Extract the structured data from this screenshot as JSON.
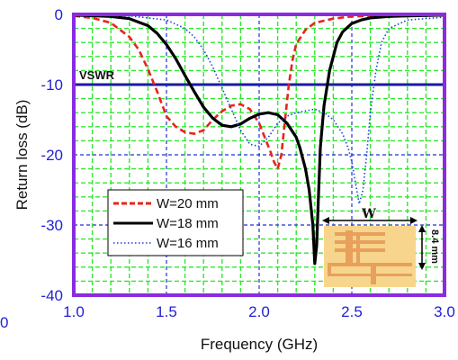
{
  "chart_data": {
    "type": "line",
    "xlabel": "Frequency (GHz)",
    "ylabel": "Return loss (dB)",
    "xlim": [
      1.0,
      3.0
    ],
    "ylim": [
      -40,
      0
    ],
    "x_ticks": [
      "1.0",
      "1.5",
      "2.0",
      "2.5",
      "3.0"
    ],
    "y_ticks": [
      "0",
      "-10",
      "-20",
      "-30",
      "-40"
    ],
    "stray_label": "0",
    "grid": true,
    "reference_line": {
      "label": "VSWR",
      "y": -10,
      "color": "#1a1aa6"
    },
    "legend_position": "bottom-left",
    "series": [
      {
        "name": "W=20 mm",
        "color": "#e8241c",
        "style": "dashed",
        "x": [
          1.0,
          1.1,
          1.2,
          1.3,
          1.35,
          1.4,
          1.45,
          1.5,
          1.55,
          1.6,
          1.65,
          1.7,
          1.75,
          1.8,
          1.85,
          1.9,
          1.95,
          2.0,
          2.03,
          2.06,
          2.08,
          2.1,
          2.12,
          2.14,
          2.16,
          2.18,
          2.2,
          2.25,
          2.3,
          2.4,
          2.5,
          2.6,
          2.8,
          3.0
        ],
        "y": [
          -0.2,
          -0.5,
          -1.2,
          -3.2,
          -5.0,
          -7.8,
          -11.0,
          -14.5,
          -16.0,
          -16.8,
          -17.0,
          -16.5,
          -15.0,
          -13.8,
          -13.0,
          -12.8,
          -13.5,
          -15.5,
          -17.5,
          -19.5,
          -21.0,
          -22.0,
          -20.0,
          -15.0,
          -10.0,
          -6.5,
          -4.2,
          -2.2,
          -1.2,
          -0.6,
          -0.3,
          -0.2,
          -0.1,
          -0.1
        ]
      },
      {
        "name": "W=18 mm",
        "color": "#000000",
        "style": "solid",
        "x": [
          1.0,
          1.2,
          1.3,
          1.4,
          1.45,
          1.5,
          1.55,
          1.6,
          1.65,
          1.7,
          1.75,
          1.8,
          1.85,
          1.9,
          1.95,
          2.0,
          2.05,
          2.1,
          2.15,
          2.2,
          2.22,
          2.25,
          2.27,
          2.29,
          2.3,
          2.31,
          2.32,
          2.33,
          2.35,
          2.38,
          2.42,
          2.45,
          2.5,
          2.55,
          2.6,
          2.7,
          2.8,
          3.0
        ],
        "y": [
          -0.1,
          -0.3,
          -0.6,
          -1.6,
          -2.7,
          -4.3,
          -6.3,
          -8.7,
          -11.0,
          -13.2,
          -14.8,
          -15.8,
          -16.0,
          -15.6,
          -14.8,
          -14.2,
          -14.0,
          -14.3,
          -15.5,
          -17.5,
          -19.0,
          -22.0,
          -25.0,
          -30.0,
          -35.5,
          -33.0,
          -26.0,
          -19.0,
          -13.0,
          -8.0,
          -4.0,
          -2.5,
          -1.3,
          -0.8,
          -0.5,
          -0.3,
          -0.2,
          -0.1
        ]
      },
      {
        "name": "W=16 mm",
        "color": "#1a3fe0",
        "style": "dotted",
        "x": [
          1.0,
          1.3,
          1.5,
          1.6,
          1.65,
          1.7,
          1.75,
          1.8,
          1.85,
          1.9,
          1.95,
          2.0,
          2.05,
          2.1,
          2.15,
          2.2,
          2.3,
          2.35,
          2.4,
          2.45,
          2.48,
          2.5,
          2.52,
          2.54,
          2.56,
          2.58,
          2.6,
          2.63,
          2.66,
          2.7,
          2.8,
          3.0
        ],
        "y": [
          -0.1,
          -0.2,
          -0.8,
          -2.0,
          -3.2,
          -5.0,
          -7.5,
          -10.5,
          -13.5,
          -16.5,
          -18.5,
          -18.8,
          -17.5,
          -15.5,
          -14.5,
          -14.0,
          -13.5,
          -14.0,
          -15.0,
          -17.0,
          -19.0,
          -21.0,
          -24.0,
          -27.0,
          -25.0,
          -20.0,
          -14.0,
          -8.0,
          -4.0,
          -2.0,
          -0.8,
          -0.4
        ]
      }
    ],
    "inset": {
      "width_label": "W",
      "height_label": "8.4 mm"
    }
  }
}
